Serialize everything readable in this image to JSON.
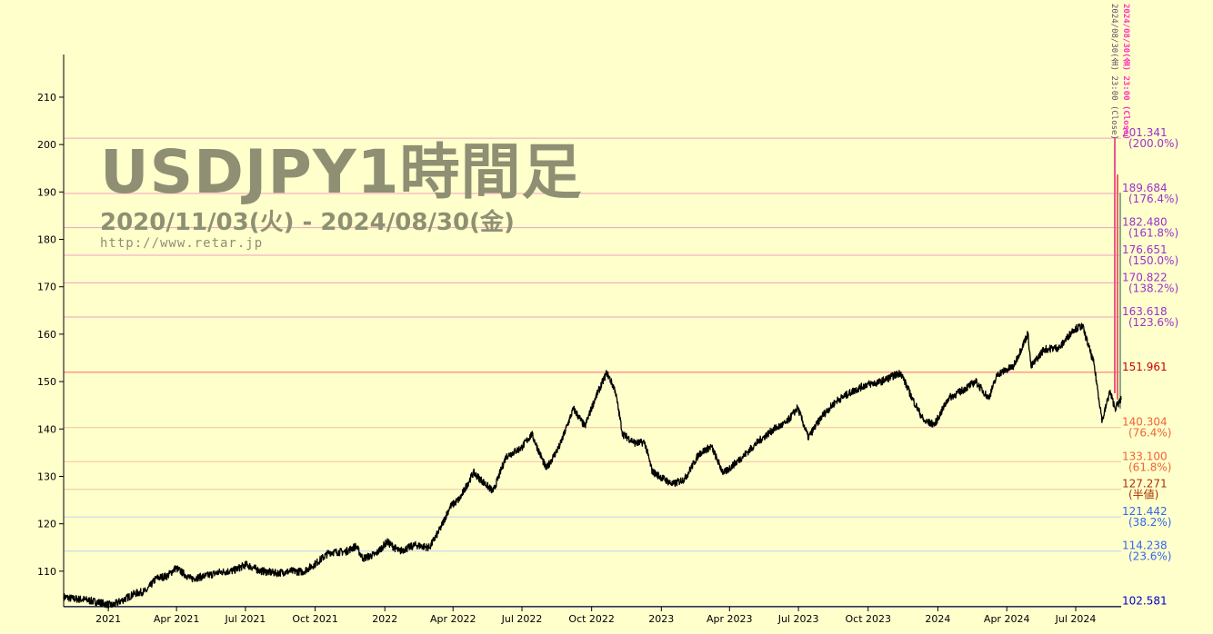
{
  "titles": {
    "main": "USDJPY1時間足",
    "range": "2020/11/03(火) - 2024/08/30(金)",
    "url": "http://www.retar.jp"
  },
  "side_notes": {
    "first": "2024/08/30(金) 23:00 (Close)",
    "second": "2024/08/30(金) 23:00 (Close)"
  },
  "chart_data": {
    "type": "line",
    "title": "USDJPY1時間足",
    "xlabel": "",
    "ylabel": "",
    "ylim": [
      102.5,
      219
    ],
    "xlim": [
      "2020-11-03",
      "2024-08-30"
    ],
    "grid": false,
    "y_ticks": [
      110,
      120,
      130,
      140,
      150,
      160,
      170,
      180,
      190,
      200,
      210
    ],
    "x_ticks": [
      {
        "label": "2021",
        "date": "2021-01-01"
      },
      {
        "label": "Apr 2021",
        "date": "2021-04-01"
      },
      {
        "label": "Jul 2021",
        "date": "2021-07-01"
      },
      {
        "label": "Oct 2021",
        "date": "2021-10-01"
      },
      {
        "label": "2022",
        "date": "2022-01-01"
      },
      {
        "label": "Apr 2022",
        "date": "2022-04-01"
      },
      {
        "label": "Jul 2022",
        "date": "2022-07-01"
      },
      {
        "label": "Oct 2022",
        "date": "2022-10-01"
      },
      {
        "label": "2023",
        "date": "2023-01-01"
      },
      {
        "label": "Apr 2023",
        "date": "2023-04-01"
      },
      {
        "label": "Jul 2023",
        "date": "2023-07-01"
      },
      {
        "label": "Oct 2023",
        "date": "2023-10-01"
      },
      {
        "label": "2024",
        "date": "2024-01-01"
      },
      {
        "label": "Apr 2024",
        "date": "2024-04-01"
      },
      {
        "label": "Jul 2024",
        "date": "2024-07-01"
      }
    ],
    "levels": [
      {
        "value": 201.341,
        "label": "201.341",
        "pct": "(200.0%)",
        "color": "#9933cc",
        "line": "#f0a0c0"
      },
      {
        "value": 189.684,
        "label": "189.684",
        "pct": "(176.4%)",
        "color": "#9933cc",
        "line": "#f0a0c0"
      },
      {
        "value": 182.48,
        "label": "182.480",
        "pct": "(161.8%)",
        "color": "#9933cc",
        "line": "#f0a0c0"
      },
      {
        "value": 176.651,
        "label": "176.651",
        "pct": "(150.0%)",
        "color": "#9933cc",
        "line": "#f0a0c0"
      },
      {
        "value": 170.822,
        "label": "170.822",
        "pct": "(138.2%)",
        "color": "#9933cc",
        "line": "#f0a0c0"
      },
      {
        "value": 163.618,
        "label": "163.618",
        "pct": "(123.6%)",
        "color": "#9933cc",
        "line": "#f0a0c0"
      },
      {
        "value": 151.961,
        "label": "151.961",
        "pct": "",
        "color": "#cc0000",
        "line": "#ff6666"
      },
      {
        "value": 140.304,
        "label": "140.304",
        "pct": "(76.4%)",
        "color": "#ee6633",
        "line": "#f0c0a0"
      },
      {
        "value": 133.1,
        "label": "133.100",
        "pct": "(61.8%)",
        "color": "#ee6633",
        "line": "#f0c0a0"
      },
      {
        "value": 127.271,
        "label": "127.271",
        "pct": "(半値)",
        "color": "#aa3300",
        "line": "#f0c0a0"
      },
      {
        "value": 121.442,
        "label": "121.442",
        "pct": "(38.2%)",
        "color": "#3366ee",
        "line": "#c0d0f0"
      },
      {
        "value": 114.238,
        "label": "114.238",
        "pct": "(23.6%)",
        "color": "#3366ee",
        "line": "#c0d0f0"
      },
      {
        "value": 102.581,
        "label": "102.581",
        "pct": "",
        "color": "#0000cc",
        "line": "#3333ff"
      }
    ],
    "series": [
      {
        "x": [
          "2020-11-03",
          "2020-11-15",
          "2020-12-01",
          "2020-12-20",
          "2021-01-06",
          "2021-01-20",
          "2021-02-05",
          "2021-02-20",
          "2021-03-05",
          "2021-03-20",
          "2021-03-31",
          "2021-04-20",
          "2021-05-10",
          "2021-05-28",
          "2021-06-15",
          "2021-07-02",
          "2021-07-20",
          "2021-08-10",
          "2021-08-31",
          "2021-09-15",
          "2021-09-30",
          "2021-10-20",
          "2021-11-10",
          "2021-11-24",
          "2021-12-03",
          "2021-12-20",
          "2022-01-04",
          "2022-01-20",
          "2022-02-10",
          "2022-03-01",
          "2022-03-15",
          "2022-03-28",
          "2022-04-10",
          "2022-04-28",
          "2022-05-24",
          "2022-06-10",
          "2022-06-30",
          "2022-07-14",
          "2022-08-02",
          "2022-08-20",
          "2022-09-07",
          "2022-09-22",
          "2022-10-05",
          "2022-10-21",
          "2022-11-01",
          "2022-11-11",
          "2022-11-28",
          "2022-12-10",
          "2022-12-20",
          "2023-01-16",
          "2023-02-01",
          "2023-02-20",
          "2023-03-08",
          "2023-03-24",
          "2023-04-20",
          "2023-05-10",
          "2023-05-30",
          "2023-06-15",
          "2023-06-30",
          "2023-07-14",
          "2023-08-01",
          "2023-08-20",
          "2023-09-10",
          "2023-09-29",
          "2023-10-15",
          "2023-11-13",
          "2023-11-28",
          "2023-12-14",
          "2023-12-28",
          "2024-01-15",
          "2024-02-01",
          "2024-02-20",
          "2024-03-08",
          "2024-03-20",
          "2024-04-10",
          "2024-04-29",
          "2024-05-03",
          "2024-05-20",
          "2024-06-10",
          "2024-06-28",
          "2024-07-10",
          "2024-07-25",
          "2024-08-05",
          "2024-08-15",
          "2024-08-22",
          "2024-08-30"
        ],
        "y": [
          104.6,
          104.2,
          104.0,
          103.4,
          102.8,
          103.9,
          105.3,
          105.8,
          108.5,
          109.0,
          110.7,
          108.4,
          109.0,
          109.8,
          110.1,
          111.4,
          110.1,
          109.6,
          110.0,
          109.9,
          111.4,
          114.0,
          114.1,
          115.3,
          112.7,
          113.6,
          116.2,
          114.2,
          115.5,
          115.0,
          118.9,
          123.6,
          125.3,
          130.8,
          126.8,
          134.2,
          136.0,
          138.9,
          131.6,
          136.5,
          144.3,
          140.5,
          146.2,
          151.9,
          148.2,
          138.9,
          137.0,
          137.2,
          131.0,
          128.3,
          129.5,
          134.8,
          136.3,
          130.6,
          134.4,
          137.5,
          140.0,
          141.3,
          144.5,
          138.2,
          142.7,
          145.9,
          147.9,
          149.4,
          149.8,
          151.9,
          146.5,
          141.6,
          141.0,
          146.5,
          148.0,
          150.0,
          146.5,
          151.6,
          153.2,
          160.2,
          153.1,
          156.8,
          157.2,
          161.0,
          161.7,
          153.8,
          141.7,
          147.9,
          144.4,
          146.2
        ]
      }
    ]
  }
}
